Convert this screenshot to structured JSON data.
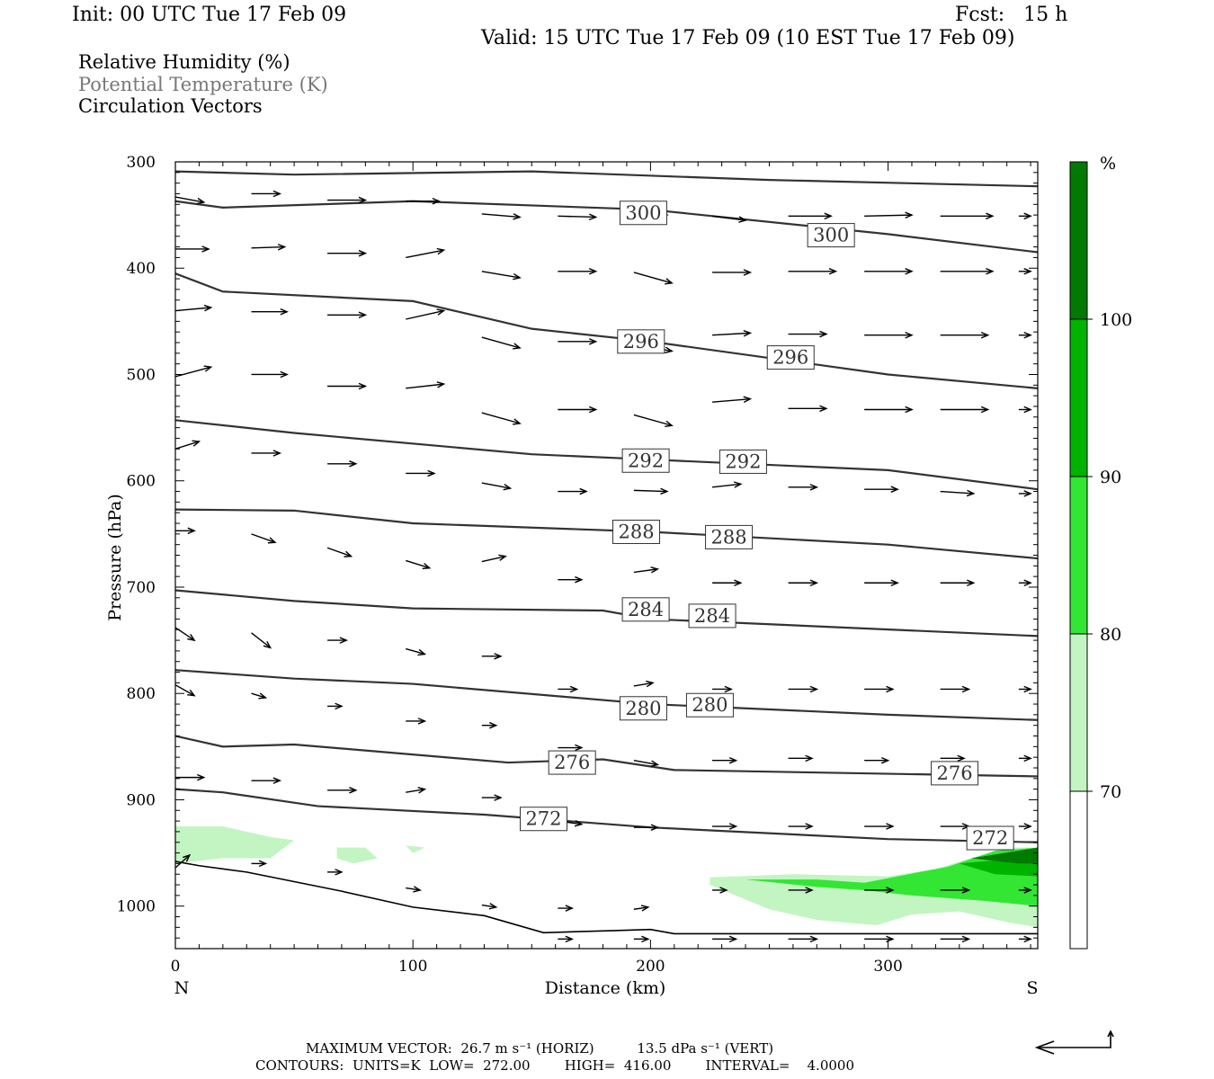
{
  "header": {
    "init": "Init: 00 UTC Tue 17 Feb 09",
    "fcst": "Fcst:   15 h",
    "valid": "Valid: 15 UTC Tue 17 Feb 09 (10 EST Tue 17 Feb 09)"
  },
  "legend": {
    "line1": "Relative Humidity (%)",
    "line2": "Potential Temperature (K)",
    "line3": "Circulation Vectors"
  },
  "footer": {
    "line1": "MAXIMUM VECTOR:  26.7 m s⁻¹ (HORIZ)          13.5 dPa s⁻¹ (VERT)",
    "line2": "CONTOURS:  UNITS=K  LOW=  272.00        HIGH=  416.00        INTERVAL=    4.0000"
  },
  "colorbar": {
    "unit": "%",
    "levels": [
      "100",
      "90",
      "80",
      "70"
    ],
    "colors": [
      "#007a00",
      "#00b300",
      "#33e633",
      "#c2f5c2",
      "#ffffff"
    ]
  },
  "chart_data": {
    "type": "cross-section",
    "xlabel": "Distance (km)",
    "ylabel": "Pressure (hPa)",
    "xlim": [
      0,
      363
    ],
    "ylim": [
      1040,
      300
    ],
    "x_ticks": [
      "0",
      "100",
      "200",
      "300"
    ],
    "y_ticks": [
      "300",
      "400",
      "500",
      "600",
      "700",
      "800",
      "900",
      "1000"
    ],
    "x_end_labels": {
      "left": "N",
      "right": "S"
    },
    "theta_contours": [
      {
        "value": 300,
        "points": [
          [
            0,
            309
          ],
          [
            50,
            312
          ],
          [
            150,
            309
          ],
          [
            250,
            317
          ],
          [
            363,
            323
          ]
        ]
      },
      {
        "value": 300,
        "points": [
          [
            0,
            337
          ],
          [
            20,
            343
          ],
          [
            100,
            337
          ],
          [
            200,
            345
          ],
          [
            300,
            368
          ],
          [
            363,
            385
          ]
        ]
      },
      {
        "value": 296,
        "points": [
          [
            0,
            405
          ],
          [
            20,
            422
          ],
          [
            100,
            431
          ],
          [
            150,
            457
          ],
          [
            200,
            469
          ],
          [
            300,
            500
          ],
          [
            363,
            513
          ]
        ]
      },
      {
        "value": 292,
        "points": [
          [
            0,
            543
          ],
          [
            50,
            555
          ],
          [
            150,
            575
          ],
          [
            200,
            580
          ],
          [
            300,
            590
          ],
          [
            363,
            608
          ]
        ]
      },
      {
        "value": 288,
        "points": [
          [
            0,
            627
          ],
          [
            50,
            628
          ],
          [
            100,
            640
          ],
          [
            200,
            648
          ],
          [
            300,
            660
          ],
          [
            363,
            673
          ]
        ]
      },
      {
        "value": 284,
        "points": [
          [
            0,
            703
          ],
          [
            50,
            713
          ],
          [
            100,
            720
          ],
          [
            180,
            722
          ],
          [
            200,
            730
          ],
          [
            363,
            746
          ]
        ]
      },
      {
        "value": 280,
        "points": [
          [
            0,
            778
          ],
          [
            50,
            786
          ],
          [
            100,
            791
          ],
          [
            200,
            810
          ],
          [
            300,
            820
          ],
          [
            363,
            825
          ]
        ]
      },
      {
        "value": 276,
        "points": [
          [
            0,
            840
          ],
          [
            20,
            850
          ],
          [
            50,
            848
          ],
          [
            140,
            865
          ],
          [
            180,
            862
          ],
          [
            210,
            872
          ],
          [
            363,
            878
          ]
        ]
      },
      {
        "value": 272,
        "points": [
          [
            0,
            890
          ],
          [
            20,
            893
          ],
          [
            60,
            906
          ],
          [
            130,
            914
          ],
          [
            200,
            926
          ],
          [
            300,
            937
          ],
          [
            363,
            940
          ]
        ]
      }
    ],
    "contour_labels": [
      {
        "text": "300",
        "x": 197,
        "p": 348
      },
      {
        "text": "300",
        "x": 276,
        "p": 369
      },
      {
        "text": "296",
        "x": 196,
        "p": 469
      },
      {
        "text": "296",
        "x": 259,
        "p": 484
      },
      {
        "text": "292",
        "x": 198,
        "p": 581
      },
      {
        "text": "292",
        "x": 239,
        "p": 582
      },
      {
        "text": "288",
        "x": 194,
        "p": 648
      },
      {
        "text": "288",
        "x": 233,
        "p": 653
      },
      {
        "text": "284",
        "x": 198,
        "p": 721
      },
      {
        "text": "284",
        "x": 226,
        "p": 727
      },
      {
        "text": "280",
        "x": 197,
        "p": 814
      },
      {
        "text": "280",
        "x": 225,
        "p": 811
      },
      {
        "text": "276",
        "x": 167,
        "p": 865
      },
      {
        "text": "276",
        "x": 328,
        "p": 875
      },
      {
        "text": "272",
        "x": 155,
        "p": 918
      },
      {
        "text": "272",
        "x": 343,
        "p": 936
      }
    ],
    "terrain": [
      [
        0,
        958
      ],
      [
        10,
        962
      ],
      [
        30,
        968
      ],
      [
        70,
        986
      ],
      [
        100,
        1001
      ],
      [
        130,
        1009
      ],
      [
        155,
        1025
      ],
      [
        185,
        1023
      ],
      [
        200,
        1022
      ],
      [
        210,
        1026
      ],
      [
        363,
        1026
      ]
    ],
    "rh_regions": [
      {
        "level": "70-80",
        "points": [
          [
            0,
            925
          ],
          [
            20,
            925
          ],
          [
            40,
            935
          ],
          [
            50,
            938
          ],
          [
            40,
            955
          ],
          [
            20,
            955
          ],
          [
            0,
            960
          ]
        ]
      },
      {
        "level": "70-80",
        "points": [
          [
            68,
            945
          ],
          [
            80,
            945
          ],
          [
            85,
            955
          ],
          [
            75,
            960
          ],
          [
            68,
            955
          ]
        ]
      },
      {
        "level": "70-80",
        "points": [
          [
            97,
            943
          ],
          [
            105,
            945
          ],
          [
            100,
            950
          ]
        ]
      },
      {
        "level": "70-80",
        "points": [
          [
            225,
            973
          ],
          [
            260,
            970
          ],
          [
            300,
            972
          ],
          [
            320,
            965
          ],
          [
            350,
            945
          ],
          [
            363,
            945
          ],
          [
            363,
            1020
          ],
          [
            350,
            1015
          ],
          [
            330,
            1005
          ],
          [
            310,
            1008
          ],
          [
            295,
            1018
          ],
          [
            270,
            1013
          ],
          [
            250,
            1003
          ],
          [
            225,
            980
          ]
        ]
      },
      {
        "level": "80-90",
        "points": [
          [
            240,
            975
          ],
          [
            270,
            975
          ],
          [
            290,
            978
          ],
          [
            325,
            963
          ],
          [
            345,
            948
          ],
          [
            363,
            945
          ],
          [
            363,
            1000
          ],
          [
            340,
            995
          ],
          [
            310,
            990
          ],
          [
            290,
            985
          ],
          [
            270,
            982
          ]
        ]
      },
      {
        "level": "90-100",
        "points": [
          [
            330,
            960
          ],
          [
            355,
            955
          ],
          [
            363,
            950
          ],
          [
            363,
            972
          ],
          [
            345,
            970
          ]
        ]
      },
      {
        "level": "100+",
        "points": [
          [
            335,
            955
          ],
          [
            363,
            945
          ],
          [
            363,
            960
          ],
          [
            355,
            960
          ]
        ]
      }
    ],
    "vectors_dxdy_km_hpa": [
      [
        0,
        333,
        12,
        5
      ],
      [
        32,
        330,
        12,
        0
      ],
      [
        64,
        336,
        16,
        0
      ],
      [
        97,
        337,
        14,
        0
      ],
      [
        129,
        349,
        16,
        3
      ],
      [
        161,
        351,
        16,
        1
      ],
      [
        193,
        349,
        14,
        1
      ],
      [
        226,
        351,
        14,
        4
      ],
      [
        258,
        351,
        18,
        0
      ],
      [
        290,
        351,
        20,
        -1
      ],
      [
        322,
        351,
        22,
        0
      ],
      [
        355,
        351,
        5,
        0
      ],
      [
        0,
        382,
        14,
        0
      ],
      [
        32,
        381,
        14,
        -1
      ],
      [
        64,
        386,
        16,
        0
      ],
      [
        97,
        390,
        16,
        -7
      ],
      [
        129,
        403,
        16,
        6
      ],
      [
        161,
        403,
        16,
        0
      ],
      [
        193,
        404,
        16,
        10
      ],
      [
        226,
        404,
        16,
        0
      ],
      [
        258,
        403,
        20,
        0
      ],
      [
        290,
        403,
        20,
        0
      ],
      [
        322,
        403,
        22,
        0
      ],
      [
        355,
        403,
        5,
        0
      ],
      [
        0,
        440,
        15,
        -3
      ],
      [
        32,
        441,
        15,
        0
      ],
      [
        64,
        444,
        16,
        0
      ],
      [
        97,
        448,
        16,
        -8
      ],
      [
        129,
        465,
        16,
        10
      ],
      [
        161,
        469,
        16,
        0
      ],
      [
        193,
        472,
        16,
        6
      ],
      [
        226,
        463,
        16,
        -2
      ],
      [
        258,
        462,
        16,
        0
      ],
      [
        290,
        463,
        20,
        0
      ],
      [
        322,
        463,
        20,
        0
      ],
      [
        355,
        463,
        5,
        0
      ],
      [
        0,
        502,
        15,
        -9
      ],
      [
        32,
        500,
        15,
        0
      ],
      [
        64,
        511,
        16,
        0
      ],
      [
        97,
        513,
        16,
        -4
      ],
      [
        129,
        536,
        16,
        10
      ],
      [
        161,
        533,
        16,
        0
      ],
      [
        193,
        538,
        16,
        10
      ],
      [
        226,
        526,
        16,
        -3
      ],
      [
        258,
        532,
        16,
        0
      ],
      [
        290,
        533,
        20,
        0
      ],
      [
        322,
        533,
        20,
        0
      ],
      [
        355,
        533,
        5,
        0
      ],
      [
        0,
        570,
        10,
        -7
      ],
      [
        32,
        574,
        12,
        0
      ],
      [
        64,
        584,
        12,
        0
      ],
      [
        97,
        593,
        12,
        0
      ],
      [
        129,
        602,
        12,
        5
      ],
      [
        161,
        610,
        12,
        0
      ],
      [
        193,
        609,
        14,
        1
      ],
      [
        226,
        606,
        12,
        -3
      ],
      [
        258,
        606,
        12,
        0
      ],
      [
        290,
        608,
        14,
        0
      ],
      [
        322,
        610,
        14,
        2
      ],
      [
        355,
        612,
        5,
        0
      ],
      [
        0,
        647,
        8,
        0
      ],
      [
        32,
        650,
        10,
        8
      ],
      [
        64,
        663,
        10,
        8
      ],
      [
        97,
        675,
        10,
        7
      ],
      [
        129,
        676,
        10,
        -5
      ],
      [
        161,
        693,
        10,
        0
      ],
      [
        193,
        686,
        10,
        -3
      ],
      [
        226,
        696,
        12,
        0
      ],
      [
        258,
        696,
        12,
        0
      ],
      [
        290,
        696,
        14,
        0
      ],
      [
        322,
        696,
        14,
        0
      ],
      [
        355,
        696,
        5,
        0
      ],
      [
        0,
        738,
        8,
        12
      ],
      [
        32,
        743,
        8,
        14
      ],
      [
        64,
        750,
        8,
        0
      ],
      [
        97,
        758,
        8,
        5
      ],
      [
        129,
        765,
        8,
        0
      ],
      [
        161,
        796,
        8,
        0
      ],
      [
        193,
        793,
        8,
        -3
      ],
      [
        226,
        796,
        8,
        0
      ],
      [
        258,
        796,
        12,
        0
      ],
      [
        290,
        796,
        12,
        0
      ],
      [
        322,
        796,
        12,
        0
      ],
      [
        355,
        796,
        5,
        0
      ],
      [
        0,
        792,
        8,
        10
      ],
      [
        32,
        800,
        6,
        4
      ],
      [
        64,
        812,
        6,
        0
      ],
      [
        97,
        826,
        8,
        0
      ],
      [
        129,
        830,
        6,
        0
      ],
      [
        161,
        851,
        10,
        0
      ],
      [
        193,
        863,
        10,
        4
      ],
      [
        226,
        863,
        10,
        0
      ],
      [
        258,
        861,
        10,
        0
      ],
      [
        290,
        863,
        10,
        0
      ],
      [
        322,
        861,
        10,
        0
      ],
      [
        355,
        861,
        5,
        0
      ],
      [
        0,
        879,
        12,
        0
      ],
      [
        32,
        882,
        12,
        0
      ],
      [
        64,
        891,
        12,
        0
      ],
      [
        97,
        893,
        8,
        -3
      ],
      [
        129,
        898,
        8,
        0
      ],
      [
        161,
        920,
        10,
        3
      ],
      [
        193,
        926,
        10,
        0
      ],
      [
        226,
        925,
        10,
        0
      ],
      [
        258,
        925,
        10,
        0
      ],
      [
        290,
        925,
        12,
        0
      ],
      [
        322,
        925,
        12,
        0
      ],
      [
        355,
        925,
        5,
        0
      ],
      [
        0,
        964,
        6,
        -12
      ],
      [
        32,
        960,
        6,
        0
      ],
      [
        64,
        968,
        6,
        0
      ],
      [
        97,
        983,
        6,
        2
      ],
      [
        129,
        999,
        6,
        2
      ],
      [
        161,
        1002,
        6,
        0
      ],
      [
        193,
        1003,
        6,
        -2
      ],
      [
        226,
        985,
        6,
        0
      ],
      [
        258,
        985,
        10,
        0
      ],
      [
        290,
        985,
        12,
        0
      ],
      [
        322,
        985,
        12,
        0
      ],
      [
        355,
        985,
        5,
        0
      ],
      [
        161,
        1031,
        6,
        0
      ],
      [
        193,
        1031,
        6,
        0
      ],
      [
        226,
        1031,
        10,
        0
      ],
      [
        258,
        1031,
        12,
        0
      ],
      [
        290,
        1031,
        12,
        0
      ],
      [
        322,
        1031,
        12,
        0
      ],
      [
        355,
        1031,
        5,
        0
      ]
    ]
  }
}
